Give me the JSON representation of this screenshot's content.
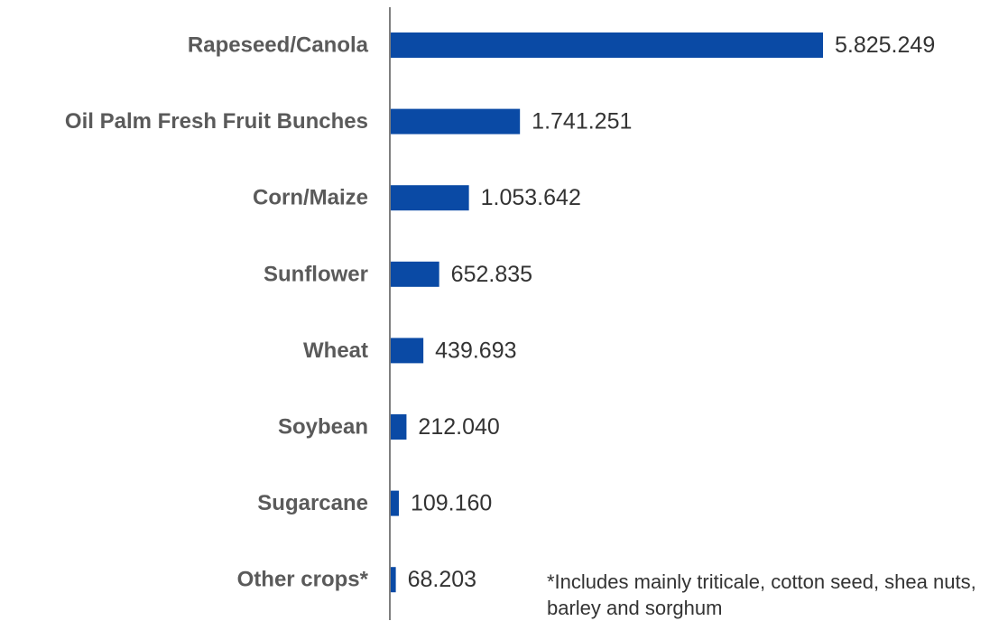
{
  "chart_data": {
    "type": "bar",
    "orientation": "horizontal",
    "categories": [
      "Rapeseed/Canola",
      "Oil Palm Fresh Fruit Bunches",
      "Corn/Maize",
      "Sunflower",
      "Wheat",
      "Soybean",
      "Sugarcane",
      "Other crops*"
    ],
    "values": [
      5825249,
      1741251,
      1053642,
      652835,
      439693,
      212040,
      109160,
      68203
    ],
    "value_labels": [
      "5.825.249",
      "1.741.251",
      "1.053.642",
      "652.835",
      "439.693",
      "212.040",
      "109.160",
      "68.203"
    ],
    "xlim": [
      0,
      6000000
    ],
    "grid": false,
    "legend": "none",
    "footnote": "*Includes mainly triticale, cotton seed, shea nuts, barley and sorghum",
    "colors": {
      "bar": "#0a4aa5",
      "axis": "#555555",
      "category_text": "#5a5a5a",
      "value_text": "#333333"
    }
  }
}
